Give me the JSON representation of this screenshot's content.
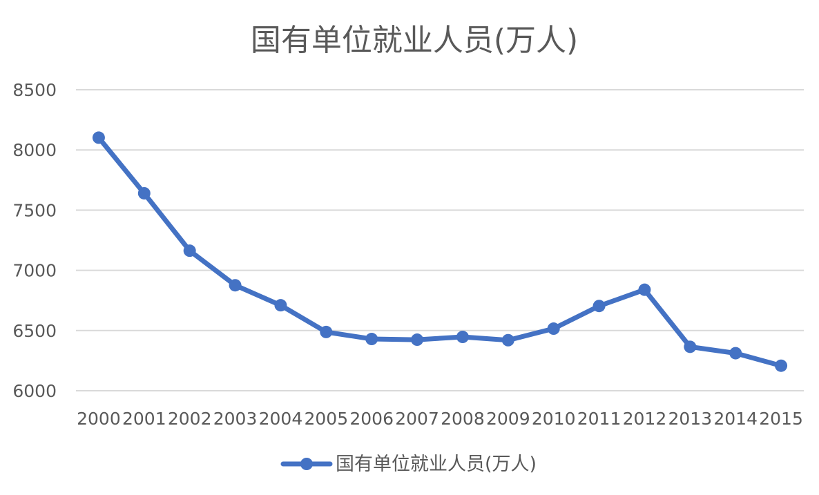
{
  "chart_data": {
    "type": "line",
    "title": "国有单位就业人员(万人)",
    "xlabel": "",
    "ylabel": "",
    "ylim": [
      6000,
      8500
    ],
    "yticks": [
      6000,
      6500,
      7000,
      7500,
      8000,
      8500
    ],
    "grid": true,
    "legend_position": "bottom",
    "categories": [
      "2000",
      "2001",
      "2002",
      "2003",
      "2004",
      "2005",
      "2006",
      "2007",
      "2008",
      "2009",
      "2010",
      "2011",
      "2012",
      "2013",
      "2014",
      "2015"
    ],
    "series": [
      {
        "name": "国有单位就业人员(万人)",
        "color": "#4472C4",
        "values": [
          8102,
          7640,
          7163,
          6876,
          6710,
          6488,
          6430,
          6424,
          6447,
          6420,
          6516,
          6704,
          6839,
          6365,
          6312,
          6208
        ]
      }
    ]
  }
}
